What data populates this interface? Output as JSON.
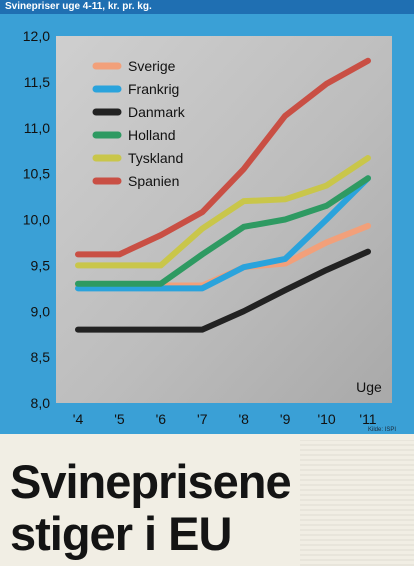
{
  "header": {
    "title": "Svinepriser uge 4-11, kr. pr. kg."
  },
  "source": "Kilde: ISPI",
  "headline": {
    "line1": "Svineprisene",
    "line2": "stiger i EU"
  },
  "colors": {
    "background": "#3aa0d6",
    "plot": "#bfbfbf",
    "header": "#1f6fb2"
  },
  "chart_data": {
    "type": "line",
    "title": "Svinepriser uge 4-11, kr. pr. kg.",
    "xlabel": "Uge",
    "ylabel": "",
    "categories": [
      "'4",
      "'5",
      "'6",
      "'7",
      "'8",
      "'9",
      "'10",
      "'11"
    ],
    "ylim": [
      8.0,
      12.0
    ],
    "yticks": [
      "8,0",
      "8,5",
      "9,0",
      "9,5",
      "10,0",
      "10,5",
      "11,0",
      "11,5",
      "12,0"
    ],
    "grid": false,
    "legend": "top-left",
    "series": [
      {
        "name": "Sverige",
        "color": "#f2a07a",
        "values": [
          9.28,
          9.28,
          9.28,
          9.28,
          9.48,
          9.52,
          9.75,
          9.93
        ]
      },
      {
        "name": "Frankrig",
        "color": "#2aa3dc",
        "values": [
          9.25,
          9.25,
          9.25,
          9.25,
          9.48,
          9.57,
          10.0,
          10.45
        ]
      },
      {
        "name": "Danmark",
        "color": "#222222",
        "values": [
          8.8,
          8.8,
          8.8,
          8.8,
          9.0,
          9.23,
          9.45,
          9.65
        ]
      },
      {
        "name": "Holland",
        "color": "#2e9a62",
        "values": [
          9.3,
          9.3,
          9.3,
          9.62,
          9.92,
          10.0,
          10.15,
          10.45
        ]
      },
      {
        "name": "Tyskland",
        "color": "#c9c64a",
        "values": [
          9.5,
          9.5,
          9.5,
          9.9,
          10.2,
          10.22,
          10.37,
          10.67
        ]
      },
      {
        "name": "Spanien",
        "color": "#c94f44",
        "values": [
          9.62,
          9.62,
          9.83,
          10.08,
          10.55,
          11.13,
          11.48,
          11.73
        ]
      }
    ]
  }
}
